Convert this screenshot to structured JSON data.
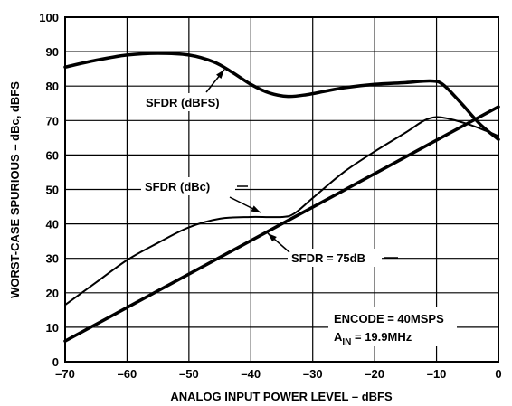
{
  "chart_data": {
    "type": "line",
    "title": "",
    "xlabel": "ANALOG INPUT POWER LEVEL – dBFS",
    "ylabel": "WORST-CASE SPURIOUS – dBc, dBFS",
    "xlim": [
      -70,
      0
    ],
    "ylim": [
      0,
      100
    ],
    "xticks": [
      -70,
      -60,
      -50,
      -40,
      -30,
      -20,
      -10,
      0
    ],
    "yticks": [
      0,
      10,
      20,
      30,
      40,
      50,
      60,
      70,
      80,
      90,
      100
    ],
    "xtick_labels": [
      "–70",
      "–60",
      "–50",
      "–40",
      "–30",
      "–20",
      "–10",
      "0"
    ],
    "ytick_labels": [
      "0",
      "10",
      "20",
      "30",
      "40",
      "50",
      "60",
      "70",
      "80",
      "90",
      "100"
    ],
    "grid": true,
    "series": [
      {
        "name": "SFDR (dBFS)",
        "x": [
          -70,
          -65,
          -60,
          -55,
          -50,
          -46,
          -43,
          -40,
          -37,
          -34,
          -31,
          -28,
          -25,
          -20,
          -15,
          -11,
          -9,
          -6,
          -3,
          0
        ],
        "y": [
          85.5,
          87.5,
          89,
          89.5,
          89,
          87,
          84,
          80.5,
          78,
          77,
          77.5,
          78.5,
          79.5,
          80.5,
          81,
          81.5,
          80.5,
          75,
          69,
          64.5
        ]
      },
      {
        "name": "SFDR (dBc)",
        "x": [
          -70,
          -65,
          -60,
          -55,
          -50,
          -45,
          -40,
          -35,
          -33,
          -30,
          -25,
          -20,
          -15,
          -12,
          -10,
          -8,
          -5,
          -2,
          0
        ],
        "y": [
          16.5,
          23,
          29.5,
          34.5,
          39,
          41.5,
          42,
          42,
          43,
          47.5,
          55,
          61,
          66.5,
          70,
          71,
          70.5,
          69,
          67,
          65.5
        ]
      },
      {
        "name": "SFDR = 75dB",
        "x": [
          -70,
          0
        ],
        "y": [
          6,
          74
        ]
      }
    ],
    "annotations": [
      {
        "text": "SFDR (dBFS)",
        "kind": "series-label"
      },
      {
        "text": "SFDR (dBc)",
        "kind": "series-label"
      },
      {
        "text": "SFDR = 75dB",
        "kind": "series-label"
      },
      {
        "text": "ENCODE = 40MSPS",
        "kind": "note"
      },
      {
        "text_main": "A",
        "text_sub": "IN",
        "text_rest": " = 19.9MHz",
        "kind": "note"
      }
    ]
  }
}
